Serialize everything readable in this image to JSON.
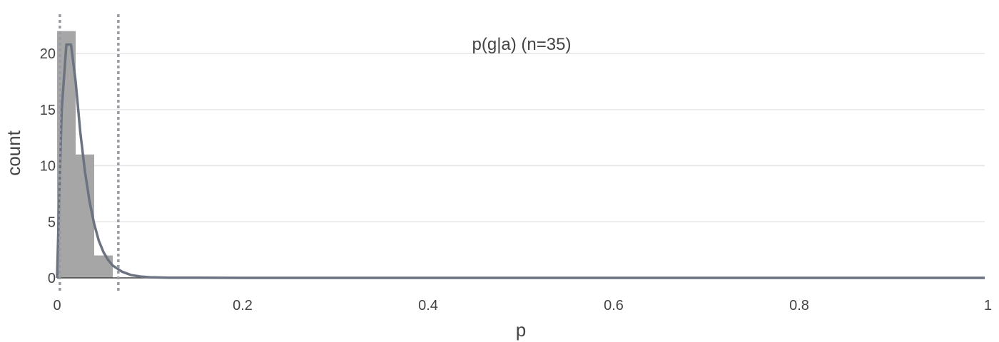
{
  "chart_data": {
    "type": "bar",
    "title": "p(g|a) (n=35)",
    "xlabel": "p",
    "ylabel": "count",
    "xlim": [
      0,
      1
    ],
    "ylim": [
      0,
      23.5
    ],
    "x_ticks": [
      0,
      0.2,
      0.4,
      0.6,
      0.8,
      1
    ],
    "x_tick_labels": [
      "0",
      "0.2",
      "0.4",
      "0.6",
      "0.8",
      "1"
    ],
    "y_ticks": [
      0,
      5,
      10,
      15,
      20
    ],
    "y_tick_labels": [
      "0",
      "5",
      "10",
      "15",
      "20"
    ],
    "grid": true,
    "histogram": {
      "bin_width": 0.02,
      "bins": [
        {
          "x0": 0.0,
          "x1": 0.02,
          "count": 22
        },
        {
          "x0": 0.02,
          "x1": 0.04,
          "count": 11
        },
        {
          "x0": 0.04,
          "x1": 0.06,
          "count": 2
        }
      ],
      "color": "#a6a6a6"
    },
    "density_curve": {
      "color": "#6b7280",
      "x": [
        0,
        0.0025,
        0.005,
        0.01,
        0.015,
        0.02,
        0.025,
        0.03,
        0.035,
        0.04,
        0.045,
        0.05,
        0.055,
        0.06,
        0.07,
        0.08,
        0.09,
        0.1,
        0.12,
        0.15,
        0.2,
        0.3,
        0.5,
        0.7,
        1.0
      ],
      "y": [
        0,
        8,
        15,
        20.8,
        20.8,
        17.5,
        13,
        9.5,
        6.8,
        4.8,
        3.3,
        2.3,
        1.6,
        1.1,
        0.55,
        0.25,
        0.12,
        0.06,
        0.02,
        0.01,
        0,
        0,
        0,
        0,
        0
      ]
    },
    "reference_lines": [
      {
        "x": 0.003,
        "style": "dotted",
        "color": "#999aa3"
      },
      {
        "x": 0.066,
        "style": "dotted",
        "color": "#999aa3"
      }
    ]
  }
}
